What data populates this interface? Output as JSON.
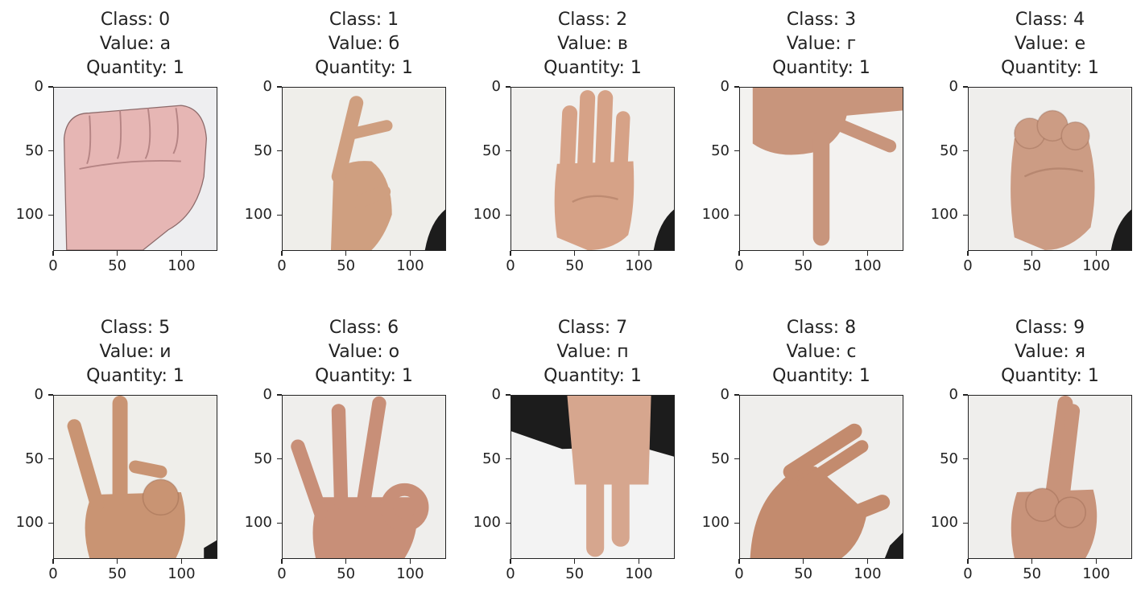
{
  "panels": [
    {
      "class_label": "Class: 0",
      "value_label": "Value: а",
      "quantity_label": "Quantity: 1",
      "gesture": "fist",
      "skin": "#e6b6b4",
      "bg": "#eeeef0"
    },
    {
      "class_label": "Class: 1",
      "value_label": "Value: б",
      "quantity_label": "Quantity: 1",
      "gesture": "two-fingers-bent",
      "skin": "#cf9f80",
      "bg": "#efeeea"
    },
    {
      "class_label": "Class: 2",
      "value_label": "Value: в",
      "quantity_label": "Quantity: 1",
      "gesture": "open-palm",
      "skin": "#d6a287",
      "bg": "#f1f0ee"
    },
    {
      "class_label": "Class: 3",
      "value_label": "Value: г",
      "quantity_label": "Quantity: 1",
      "gesture": "pointing-down",
      "skin": "#c8957c",
      "bg": "#f3f2f0"
    },
    {
      "class_label": "Class: 4",
      "value_label": "Value: е",
      "quantity_label": "Quantity: 1",
      "gesture": "curled-fingers",
      "skin": "#cc9c84",
      "bg": "#efeeec"
    },
    {
      "class_label": "Class: 5",
      "value_label": "Value: и",
      "quantity_label": "Quantity: 1",
      "gesture": "two-fingers-up",
      "skin": "#c99473",
      "bg": "#efeeea"
    },
    {
      "class_label": "Class: 6",
      "value_label": "Value: о",
      "quantity_label": "Quantity: 1",
      "gesture": "ok-sign",
      "skin": "#c88f78",
      "bg": "#efeeec"
    },
    {
      "class_label": "Class: 7",
      "value_label": "Value: п",
      "quantity_label": "Quantity: 1",
      "gesture": "two-fingers-down",
      "skin": "#d6a68e",
      "bg": "#f3f3f3"
    },
    {
      "class_label": "Class: 8",
      "value_label": "Value: с",
      "quantity_label": "Quantity: 1",
      "gesture": "c-shape",
      "skin": "#c38b6e",
      "bg": "#efeeec"
    },
    {
      "class_label": "Class: 9",
      "value_label": "Value: я",
      "quantity_label": "Quantity: 1",
      "gesture": "crossed-fingers",
      "skin": "#c8937a",
      "bg": "#efeeec"
    }
  ],
  "axis": {
    "xticks": [
      "0",
      "50",
      "100"
    ],
    "yticks": [
      "0",
      "50",
      "100"
    ],
    "x_values": [
      0,
      50,
      100
    ],
    "y_values": [
      0,
      50,
      100
    ],
    "range": [
      0,
      128
    ]
  },
  "colors": {
    "axis": "#222222",
    "text": "#222222",
    "dark_background": "#1c1c1c"
  }
}
